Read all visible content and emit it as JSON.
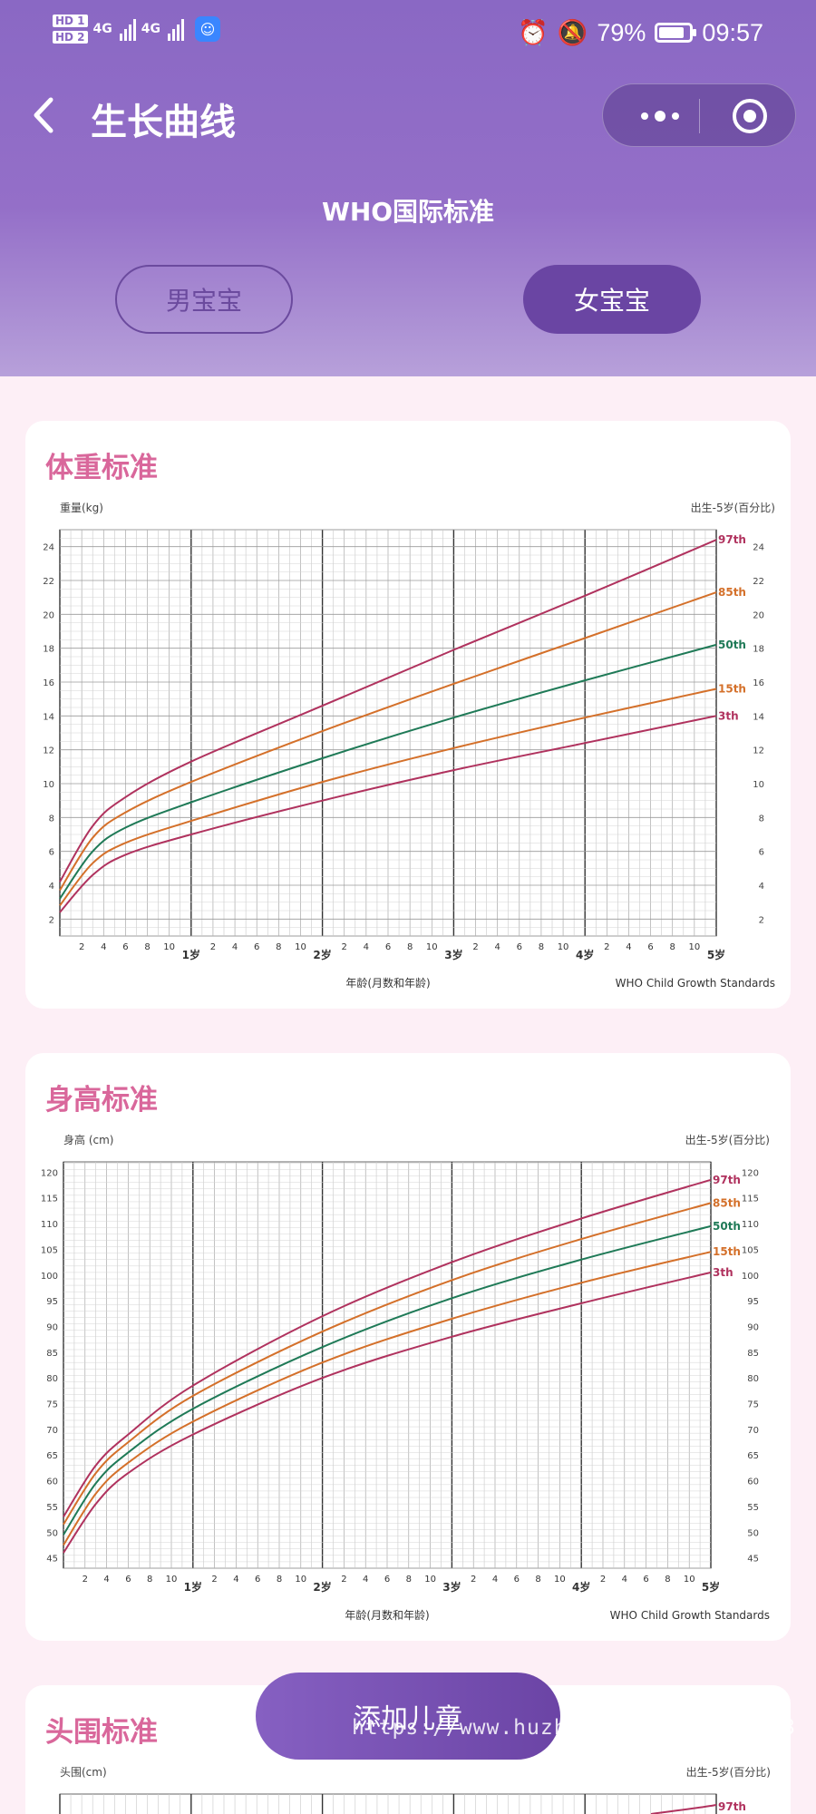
{
  "status_bar": {
    "hd1": "HD 1",
    "hd2": "HD 2",
    "net1": "4G",
    "net2": "4G",
    "battery": "79%",
    "battery_level": 0.79,
    "time": "09:57"
  },
  "nav": {
    "title": "生长曲线"
  },
  "standard_title": "WHO国际标准",
  "gender_tabs": {
    "boy": "男宝宝",
    "girl": "女宝宝",
    "selected": "girl"
  },
  "colors": {
    "p97": "#b0325e",
    "p85": "#d4702a",
    "p50": "#1f7a57",
    "p15": "#d4702a",
    "p3": "#b0325e",
    "accent": "#d9679b",
    "brand": "#6a45a3"
  },
  "cards": [
    {
      "title": "体重标准"
    },
    {
      "title": "身高标准"
    },
    {
      "title": "头围标准"
    }
  ],
  "float_button": {
    "label": "添加儿童"
  },
  "watermark": "https://www.huzhan.com/ishop44453",
  "chart_data": [
    {
      "type": "line",
      "ylabel": "重量(kg)",
      "subtitle": "出生-5岁(百分比)",
      "xlabel": "年龄(月数和年龄)",
      "source": "WHO Child Growth Standards",
      "x_tick_labels": [
        "2",
        "4",
        "6",
        "8",
        "10",
        "1岁",
        "2",
        "4",
        "6",
        "8",
        "10",
        "2岁",
        "2",
        "4",
        "6",
        "8",
        "10",
        "3岁",
        "2",
        "4",
        "6",
        "8",
        "10",
        "4岁",
        "2",
        "4",
        "6",
        "8",
        "10",
        "5岁"
      ],
      "x_unit": "months",
      "xlim": [
        0,
        60
      ],
      "ylim": [
        1,
        25
      ],
      "yticks": [
        2,
        4,
        6,
        8,
        10,
        12,
        14,
        16,
        18,
        20,
        22,
        24
      ],
      "grid": true,
      "x": [
        0,
        3,
        6,
        12,
        24,
        36,
        48,
        60
      ],
      "series": [
        {
          "name": "97th",
          "color_key": "p97",
          "values": [
            4.2,
            7.5,
            9.2,
            11.3,
            14.6,
            17.9,
            21.1,
            24.4
          ]
        },
        {
          "name": "85th",
          "color_key": "p85",
          "values": [
            3.7,
            6.8,
            8.3,
            10.1,
            13.1,
            15.9,
            18.6,
            21.3
          ]
        },
        {
          "name": "50th",
          "color_key": "p50",
          "values": [
            3.2,
            6.0,
            7.4,
            8.9,
            11.5,
            13.9,
            16.1,
            18.2
          ]
        },
        {
          "name": "15th",
          "color_key": "p15",
          "values": [
            2.8,
            5.3,
            6.5,
            7.8,
            10.1,
            12.1,
            13.9,
            15.6
          ]
        },
        {
          "name": "3th",
          "color_key": "p3",
          "values": [
            2.4,
            4.6,
            5.8,
            7.0,
            9.0,
            10.8,
            12.4,
            14.0
          ]
        }
      ]
    },
    {
      "type": "line",
      "ylabel": "身高 (cm)",
      "subtitle": "出生-5岁(百分比)",
      "xlabel": "年龄(月数和年龄)",
      "source": "WHO Child Growth Standards",
      "x_tick_labels": [
        "2",
        "4",
        "6",
        "8",
        "10",
        "1岁",
        "2",
        "4",
        "6",
        "8",
        "10",
        "2岁",
        "2",
        "4",
        "6",
        "8",
        "10",
        "3岁",
        "2",
        "4",
        "6",
        "8",
        "10",
        "4岁",
        "2",
        "4",
        "6",
        "8",
        "10",
        "5岁"
      ],
      "x_unit": "months",
      "xlim": [
        0,
        60
      ],
      "ylim": [
        43,
        122
      ],
      "yticks": [
        45,
        50,
        55,
        60,
        65,
        70,
        75,
        80,
        85,
        90,
        95,
        100,
        105,
        110,
        115,
        120
      ],
      "grid": true,
      "x": [
        0,
        3,
        6,
        12,
        24,
        36,
        48,
        60
      ],
      "series": [
        {
          "name": "97th",
          "color_key": "p97",
          "values": [
            53.0,
            63.0,
            69.0,
            78.5,
            92.0,
            102.5,
            111.0,
            118.5
          ]
        },
        {
          "name": "85th",
          "color_key": "p85",
          "values": [
            51.5,
            61.5,
            67.5,
            76.5,
            89.0,
            99.0,
            107.0,
            114.0
          ]
        },
        {
          "name": "50th",
          "color_key": "p50",
          "values": [
            49.5,
            59.5,
            65.5,
            74.0,
            86.0,
            95.5,
            103.0,
            109.5
          ]
        },
        {
          "name": "15th",
          "color_key": "p15",
          "values": [
            47.5,
            57.5,
            63.5,
            71.5,
            83.0,
            91.5,
            98.5,
            104.5
          ]
        },
        {
          "name": "3th",
          "color_key": "p3",
          "values": [
            46.0,
            55.5,
            61.5,
            69.0,
            80.0,
            88.0,
            94.5,
            100.5
          ]
        }
      ]
    },
    {
      "type": "line",
      "ylabel": "头围(cm)",
      "subtitle": "出生-5岁(百分比)",
      "series": [
        {
          "name": "97th",
          "color_key": "p97"
        }
      ]
    }
  ]
}
